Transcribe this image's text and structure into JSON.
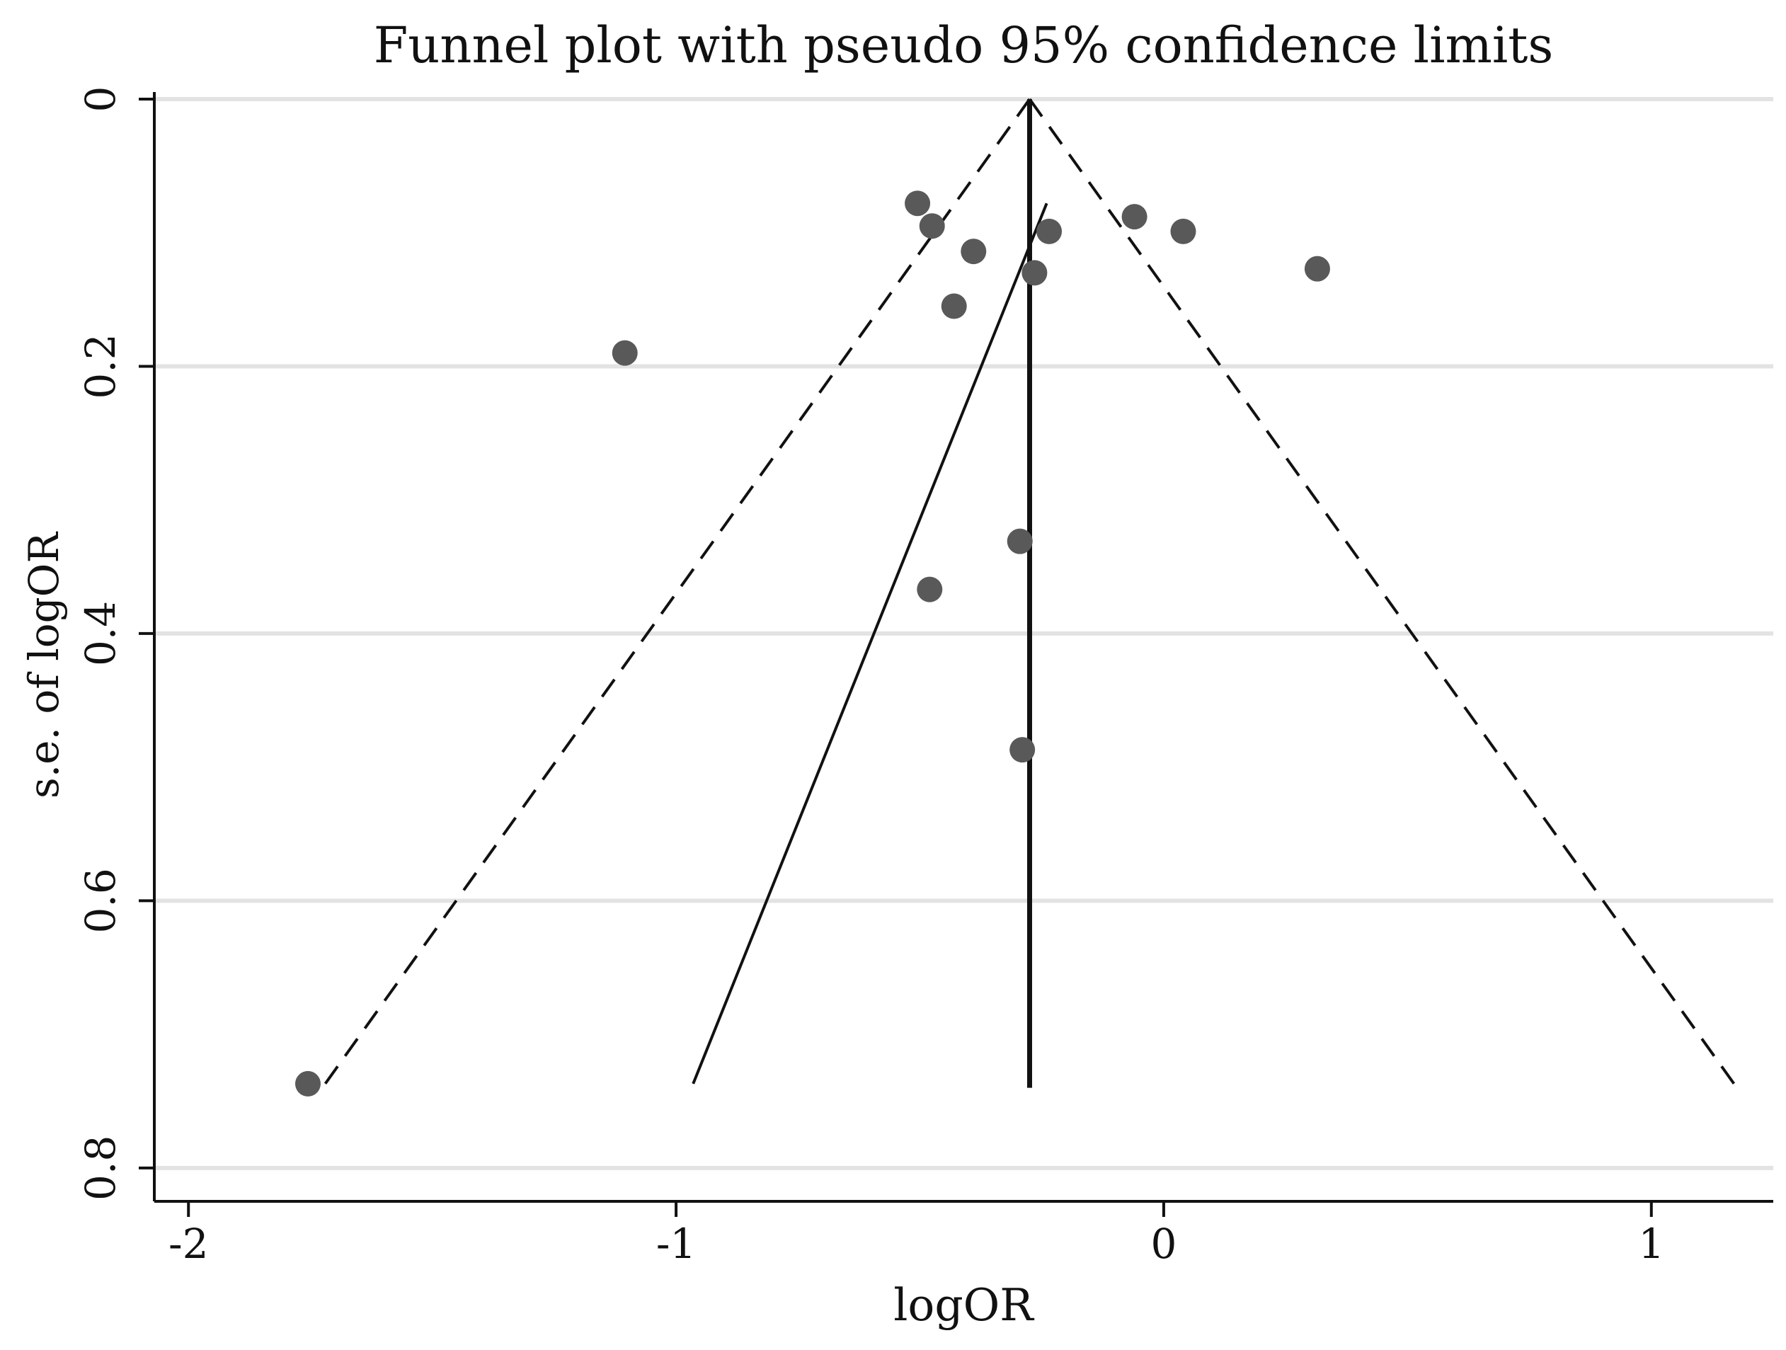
{
  "chart_data": {
    "type": "scatter",
    "title": "Funnel plot with pseudo 95% confidence limits",
    "xlabel": "logOR",
    "ylabel": "s.e. of logOR",
    "xlim": [
      -2.07,
      1.25
    ],
    "ylim": [
      0,
      0.825
    ],
    "y_reversed": true,
    "xticks": [
      -2,
      -1,
      0,
      1
    ],
    "xtick_labels": [
      "-2",
      "-1",
      "0",
      "1"
    ],
    "yticks": [
      0,
      0.2,
      0.4,
      0.6,
      0.8
    ],
    "ytick_labels": [
      "0",
      "0.2",
      "0.4",
      "0.6",
      "0.8"
    ],
    "grid": "horizontal",
    "pooled_estimate": -0.275,
    "pseudo_ci_max_se": 0.74,
    "series": [
      {
        "name": "studies",
        "points": [
          {
            "x": -0.505,
            "se": 0.078
          },
          {
            "x": -0.475,
            "se": 0.095
          },
          {
            "x": -0.39,
            "se": 0.114
          },
          {
            "x": -0.235,
            "se": 0.099
          },
          {
            "x": -0.06,
            "se": 0.088
          },
          {
            "x": 0.04,
            "se": 0.099
          },
          {
            "x": 0.315,
            "se": 0.127
          },
          {
            "x": -0.265,
            "se": 0.13
          },
          {
            "x": -0.43,
            "se": 0.155
          },
          {
            "x": -1.105,
            "se": 0.19
          },
          {
            "x": -0.295,
            "se": 0.331
          },
          {
            "x": -0.48,
            "se": 0.367
          },
          {
            "x": -0.29,
            "se": 0.487
          },
          {
            "x": -1.755,
            "se": 0.737
          }
        ]
      },
      {
        "name": "regression line",
        "points": [
          {
            "x": -0.24,
            "se": 0.078
          },
          {
            "x": -0.965,
            "se": 0.737
          }
        ]
      }
    ],
    "colors": {
      "points": "#595959",
      "lines": "#111111",
      "grid": "#e3e3e3",
      "axis": "#111111"
    }
  }
}
